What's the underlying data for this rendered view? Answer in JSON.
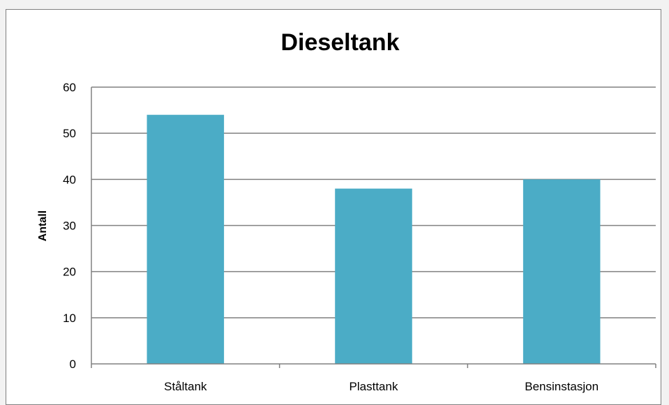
{
  "chart_data": {
    "type": "bar",
    "title": "Dieseltank",
    "xlabel": "",
    "ylabel": "Antall",
    "categories": [
      "Ståltank",
      "Plasttank",
      "Bensinstasjon"
    ],
    "values": [
      54,
      38,
      40
    ],
    "ylim": [
      0,
      60
    ],
    "yticks": [
      0,
      10,
      20,
      30,
      40,
      50,
      60
    ],
    "grid": true,
    "legend": "none",
    "colors": {
      "bar": "#4bacc6",
      "grid": "#808080",
      "frame": "#7f7f7f"
    }
  }
}
